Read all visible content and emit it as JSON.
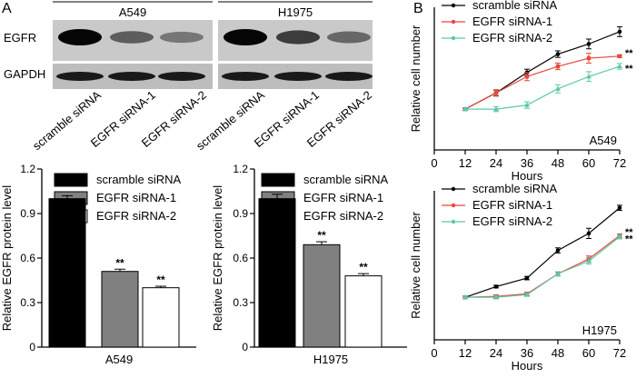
{
  "panels": {
    "a": "A",
    "b": "B"
  },
  "western_blot": {
    "groups": [
      "A549",
      "H1975"
    ],
    "row_labels": [
      "EGFR",
      "GAPDH"
    ],
    "lane_labels": [
      "scramble siRNA",
      "EGFR siRNA-1",
      "EGFR siRNA-2",
      "scramble siRNA",
      "EGFR siRNA-1",
      "EGFR siRNA-2"
    ],
    "band_intensity": {
      "EGFR": [
        1.0,
        0.55,
        0.42,
        1.0,
        0.72,
        0.5
      ],
      "GAPDH": [
        0.9,
        0.9,
        0.9,
        0.9,
        0.9,
        0.9
      ]
    }
  },
  "colors": {
    "scramble": "#000000",
    "sirna1_bar": "#808080",
    "sirna2_bar": "#ffffff",
    "sirna1_line": "#e8473c",
    "sirna2_line": "#5cc8a8"
  },
  "chart_data": [
    {
      "type": "bar",
      "categories": [
        "A549"
      ],
      "series": [
        {
          "name": "scramble siRNA",
          "values": [
            1.0
          ],
          "error": [
            0.02
          ],
          "significance": ""
        },
        {
          "name": "EGFR siRNA-1",
          "values": [
            0.51
          ],
          "error": [
            0.015
          ],
          "significance": "**"
        },
        {
          "name": "EGFR siRNA-2",
          "values": [
            0.4
          ],
          "error": [
            0.01
          ],
          "significance": "**"
        }
      ],
      "ylabel": "Relative EGFR protein level",
      "ylim": [
        0,
        1.2
      ],
      "yticks": [
        "0",
        "0.3",
        "0.6",
        "0.9",
        "1.2"
      ],
      "legend": "top"
    },
    {
      "type": "bar",
      "categories": [
        "H1975"
      ],
      "series": [
        {
          "name": "scramble siRNA",
          "values": [
            1.0
          ],
          "error": [
            0.03
          ],
          "significance": ""
        },
        {
          "name": "EGFR siRNA-1",
          "values": [
            0.69
          ],
          "error": [
            0.02
          ],
          "significance": "**"
        },
        {
          "name": "EGFR siRNA-2",
          "values": [
            0.48
          ],
          "error": [
            0.015
          ],
          "significance": "**"
        }
      ],
      "ylabel": "Relative EGFR protein level",
      "ylim": [
        0,
        1.2
      ],
      "yticks": [
        "0",
        "0.3",
        "0.6",
        "0.9",
        "1.2"
      ],
      "legend": "top"
    },
    {
      "type": "line",
      "title": "A549",
      "x": [
        12,
        24,
        36,
        48,
        60,
        72
      ],
      "xticks": [
        "0",
        "12",
        "24",
        "36",
        "48",
        "60",
        "72"
      ],
      "series": [
        {
          "name": "scramble siRNA",
          "values": [
            1.0,
            1.4,
            1.9,
            2.35,
            2.6,
            2.9
          ],
          "error": [
            0.03,
            0.07,
            0.08,
            0.08,
            0.12,
            0.12
          ],
          "significance": ""
        },
        {
          "name": "EGFR siRNA-1",
          "values": [
            1.0,
            1.4,
            1.8,
            2.05,
            2.25,
            2.3
          ],
          "error": [
            0.03,
            0.08,
            0.1,
            0.08,
            0.12,
            0.03
          ],
          "significance": "**"
        },
        {
          "name": "EGFR siRNA-2",
          "values": [
            1.0,
            1.0,
            1.1,
            1.5,
            1.8,
            2.05
          ],
          "error": [
            0.04,
            0.06,
            0.08,
            0.1,
            0.12,
            0.07
          ],
          "significance": "**"
        }
      ],
      "xlabel": "Hours",
      "ylabel": "Relative cell number",
      "xlim": [
        0,
        72
      ],
      "ylim": [
        0,
        3.5
      ],
      "yticks": [],
      "legend": "top-left"
    },
    {
      "type": "line",
      "title": "H1975",
      "x": [
        12,
        24,
        36,
        48,
        60,
        72
      ],
      "xticks": [
        "0",
        "12",
        "24",
        "36",
        "48",
        "60",
        "72"
      ],
      "series": [
        {
          "name": "scramble siRNA",
          "values": [
            1.0,
            1.25,
            1.45,
            2.1,
            2.5,
            3.1
          ],
          "error": [
            0.03,
            0.03,
            0.04,
            0.06,
            0.12,
            0.06
          ],
          "significance": ""
        },
        {
          "name": "EGFR siRNA-1",
          "values": [
            1.0,
            1.02,
            1.08,
            1.55,
            1.9,
            2.45
          ],
          "error": [
            0.03,
            0.04,
            0.04,
            0.05,
            0.07,
            0.04
          ],
          "significance": "**"
        },
        {
          "name": "EGFR siRNA-2",
          "values": [
            1.0,
            1.0,
            1.06,
            1.55,
            1.85,
            2.42
          ],
          "error": [
            0.03,
            0.04,
            0.04,
            0.05,
            0.07,
            0.05
          ],
          "significance": "**"
        }
      ],
      "xlabel": "Hours",
      "ylabel": "Relative cell number",
      "xlim": [
        0,
        72
      ],
      "ylim": [
        0,
        3.5
      ],
      "yticks": [],
      "legend": "top-left"
    }
  ]
}
